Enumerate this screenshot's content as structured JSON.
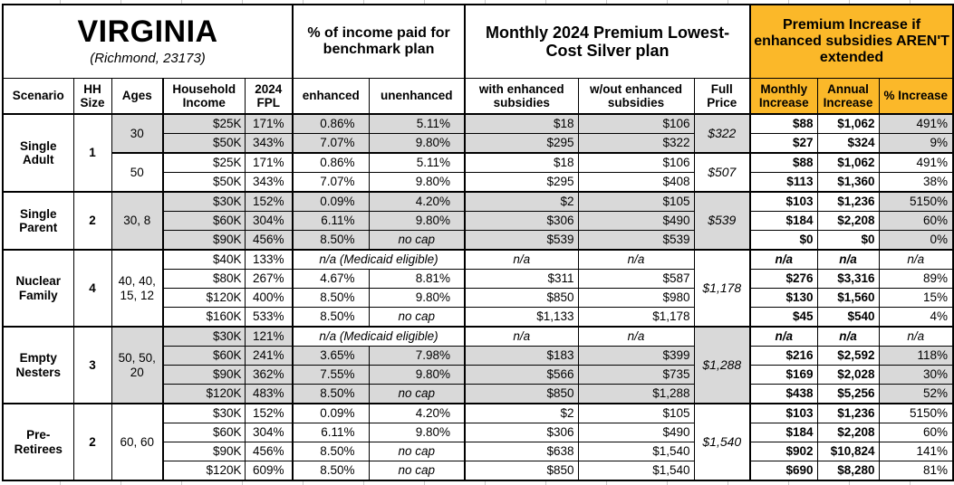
{
  "title": {
    "state": "VIRGINIA",
    "location": "(Richmond, 23173)"
  },
  "colors": {
    "gold": "#FBB829",
    "row_gray": "#D9D9D9",
    "row_white": "#FFFFFF",
    "border": "#000000"
  },
  "header": {
    "pct_income_group": "% of income paid for benchmark plan",
    "premium_group": "Monthly 2024 Premium Lowest-Cost Silver plan",
    "increase_group": "Premium Increase if enhanced subsidies AREN'T extended",
    "scenario": "Scenario",
    "hh_size": "HH Size",
    "ages": "Ages",
    "household_income": "Household Income",
    "fpl": "2024 FPL",
    "enhanced": "enhanced",
    "unenhanced": "unenhanced",
    "with_enhanced": "with enhanced subsidies",
    "without_enhanced": "w/out enhanced subsidies",
    "full_price": "Full Price",
    "monthly_increase": "Monthly Increase",
    "annual_increase": "Annual Increase",
    "pct_increase": "% Increase"
  },
  "groups": [
    {
      "scenario": "Single Adult",
      "hh_size": "1",
      "blocks": [
        {
          "ages": "30",
          "shaded": true,
          "full_price": "$322",
          "rows": [
            {
              "income": "$25K",
              "fpl": "171%",
              "enhanced": "0.86%",
              "unenhanced": "5.11%",
              "with_enh": "$18",
              "without_enh": "$106",
              "monthly": "$88",
              "annual": "$1,062",
              "pct": "491%"
            },
            {
              "income": "$50K",
              "fpl": "343%",
              "enhanced": "7.07%",
              "unenhanced": "9.80%",
              "with_enh": "$295",
              "without_enh": "$322",
              "monthly": "$27",
              "annual": "$324",
              "pct": "9%"
            }
          ]
        },
        {
          "ages": "50",
          "shaded": false,
          "full_price": "$507",
          "rows": [
            {
              "income": "$25K",
              "fpl": "171%",
              "enhanced": "0.86%",
              "unenhanced": "5.11%",
              "with_enh": "$18",
              "without_enh": "$106",
              "monthly": "$88",
              "annual": "$1,062",
              "pct": "491%"
            },
            {
              "income": "$50K",
              "fpl": "343%",
              "enhanced": "7.07%",
              "unenhanced": "9.80%",
              "with_enh": "$295",
              "without_enh": "$408",
              "monthly": "$113",
              "annual": "$1,360",
              "pct": "38%"
            }
          ]
        }
      ]
    },
    {
      "scenario": "Single Parent",
      "hh_size": "2",
      "blocks": [
        {
          "ages": "30, 8",
          "shaded": true,
          "full_price": "$539",
          "rows": [
            {
              "income": "$30K",
              "fpl": "152%",
              "enhanced": "0.09%",
              "unenhanced": "4.20%",
              "with_enh": "$2",
              "without_enh": "$105",
              "monthly": "$103",
              "annual": "$1,236",
              "pct": "5150%"
            },
            {
              "income": "$60K",
              "fpl": "304%",
              "enhanced": "6.11%",
              "unenhanced": "9.80%",
              "with_enh": "$306",
              "without_enh": "$490",
              "monthly": "$184",
              "annual": "$2,208",
              "pct": "60%"
            },
            {
              "income": "$90K",
              "fpl": "456%",
              "enhanced": "8.50%",
              "unenhanced": "no cap",
              "with_enh": "$539",
              "without_enh": "$539",
              "monthly": "$0",
              "annual": "$0",
              "pct": "0%"
            }
          ]
        }
      ]
    },
    {
      "scenario": "Nuclear Family",
      "hh_size": "4",
      "blocks": [
        {
          "ages": "40, 40, 15, 12",
          "shaded": false,
          "full_price": "$1,178",
          "rows": [
            {
              "income": "$40K",
              "fpl": "133%",
              "medicaid": true,
              "note": "n/a (Medicaid eligible)",
              "with_enh": "n/a",
              "without_enh": "n/a",
              "monthly": "n/a",
              "annual": "n/a",
              "pct": "n/a"
            },
            {
              "income": "$80K",
              "fpl": "267%",
              "enhanced": "4.67%",
              "unenhanced": "8.81%",
              "with_enh": "$311",
              "without_enh": "$587",
              "monthly": "$276",
              "annual": "$3,316",
              "pct": "89%"
            },
            {
              "income": "$120K",
              "fpl": "400%",
              "enhanced": "8.50%",
              "unenhanced": "9.80%",
              "with_enh": "$850",
              "without_enh": "$980",
              "monthly": "$130",
              "annual": "$1,560",
              "pct": "15%"
            },
            {
              "income": "$160K",
              "fpl": "533%",
              "enhanced": "8.50%",
              "unenhanced": "no cap",
              "with_enh": "$1,133",
              "without_enh": "$1,178",
              "monthly": "$45",
              "annual": "$540",
              "pct": "4%"
            }
          ]
        }
      ]
    },
    {
      "scenario": "Empty Nesters",
      "hh_size": "3",
      "blocks": [
        {
          "ages": "50, 50, 20",
          "shaded": true,
          "full_price": "$1,288",
          "rows": [
            {
              "income": "$30K",
              "fpl": "121%",
              "medicaid": true,
              "note": "n/a (Medicaid eligible)",
              "with_enh": "n/a",
              "without_enh": "n/a",
              "monthly": "n/a",
              "annual": "n/a",
              "pct": "n/a"
            },
            {
              "income": "$60K",
              "fpl": "241%",
              "enhanced": "3.65%",
              "unenhanced": "7.98%",
              "with_enh": "$183",
              "without_enh": "$399",
              "monthly": "$216",
              "annual": "$2,592",
              "pct": "118%"
            },
            {
              "income": "$90K",
              "fpl": "362%",
              "enhanced": "7.55%",
              "unenhanced": "9.80%",
              "with_enh": "$566",
              "without_enh": "$735",
              "monthly": "$169",
              "annual": "$2,028",
              "pct": "30%"
            },
            {
              "income": "$120K",
              "fpl": "483%",
              "enhanced": "8.50%",
              "unenhanced": "no cap",
              "with_enh": "$850",
              "without_enh": "$1,288",
              "monthly": "$438",
              "annual": "$5,256",
              "pct": "52%"
            }
          ]
        }
      ]
    },
    {
      "scenario": "Pre-Retirees",
      "hh_size": "2",
      "blocks": [
        {
          "ages": "60, 60",
          "shaded": false,
          "full_price": "$1,540",
          "rows": [
            {
              "income": "$30K",
              "fpl": "152%",
              "enhanced": "0.09%",
              "unenhanced": "4.20%",
              "with_enh": "$2",
              "without_enh": "$105",
              "monthly": "$103",
              "annual": "$1,236",
              "pct": "5150%"
            },
            {
              "income": "$60K",
              "fpl": "304%",
              "enhanced": "6.11%",
              "unenhanced": "9.80%",
              "with_enh": "$306",
              "without_enh": "$490",
              "monthly": "$184",
              "annual": "$2,208",
              "pct": "60%"
            },
            {
              "income": "$90K",
              "fpl": "456%",
              "enhanced": "8.50%",
              "unenhanced": "no cap",
              "with_enh": "$638",
              "without_enh": "$1,540",
              "monthly": "$902",
              "annual": "$10,824",
              "pct": "141%"
            },
            {
              "income": "$120K",
              "fpl": "609%",
              "enhanced": "8.50%",
              "unenhanced": "no cap",
              "with_enh": "$850",
              "without_enh": "$1,540",
              "monthly": "$690",
              "annual": "$8,280",
              "pct": "81%"
            }
          ]
        }
      ]
    }
  ]
}
